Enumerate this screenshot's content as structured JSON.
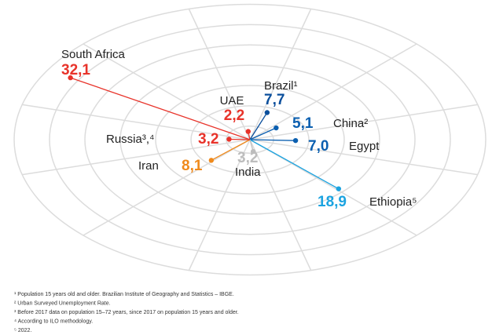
{
  "chart_data": {
    "type": "radial",
    "categories": [
      "South Africa",
      "UAE",
      "Brazil¹",
      "China²",
      "Egypt",
      "Ethiopia⁵",
      "India",
      "Iran",
      "Russia³,⁴"
    ],
    "values": [
      32.1,
      2.2,
      7.7,
      5.1,
      7.0,
      18.9,
      3.2,
      8.1,
      3.2
    ],
    "value_labels": [
      "32,1",
      "2,2",
      "7,7",
      "5,1",
      "7,0",
      "18,9",
      "3,2",
      "8,1",
      "3,2"
    ],
    "colors": [
      "#e8332a",
      "#e8332a",
      "#0b4f9c",
      "#0b5fb0",
      "#0b5fb0",
      "#1ba3e0",
      "#bdbdbd",
      "#f08a1c",
      "#e8332a"
    ],
    "footnotes": [
      "¹ Population 15 years old and older. Brazilian Institute of Geography and Statistics – IBGE.",
      "² Urban Surveyed Unemployment Rate.",
      "³ Before 2017 data on population 15–72 years, since 2017 on population 15 years and older.",
      "⁴ According to ILO methodology.",
      "⁵ 2022."
    ]
  }
}
